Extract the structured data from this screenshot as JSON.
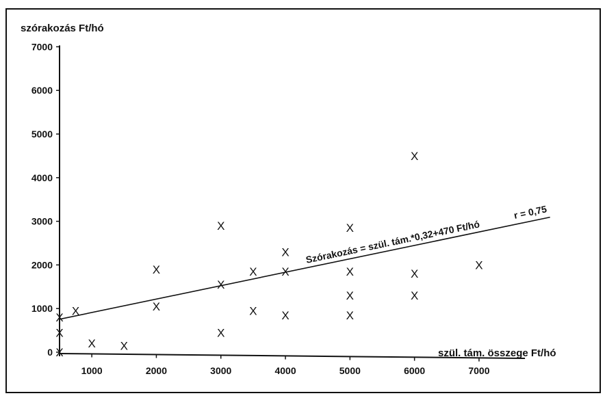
{
  "chart_data": {
    "type": "scatter",
    "ylabel": "szórakozás Ft/hó",
    "xlabel": "szül. tám. összege Ft/hó",
    "xlim": [
      500,
      7500
    ],
    "ylim": [
      0,
      7000
    ],
    "x_ticks": [
      1000,
      2000,
      3000,
      4000,
      5000,
      6000,
      7000
    ],
    "y_ticks": [
      0,
      1000,
      2000,
      3000,
      4000,
      5000,
      6000,
      7000
    ],
    "x_tick_labels": [
      "1000",
      "2000",
      "3000",
      "4000",
      "5000",
      "6000",
      "7000"
    ],
    "y_tick_labels": [
      "0",
      "1000",
      "2000",
      "3000",
      "4000",
      "5000",
      "6000",
      "7000"
    ],
    "marker": "X",
    "points": [
      {
        "x": 500,
        "y": 0
      },
      {
        "x": 500,
        "y": 450
      },
      {
        "x": 500,
        "y": 800
      },
      {
        "x": 750,
        "y": 950
      },
      {
        "x": 1000,
        "y": 200
      },
      {
        "x": 1500,
        "y": 150
      },
      {
        "x": 2000,
        "y": 1050
      },
      {
        "x": 2000,
        "y": 1900
      },
      {
        "x": 3000,
        "y": 450
      },
      {
        "x": 3000,
        "y": 1550
      },
      {
        "x": 3000,
        "y": 2900
      },
      {
        "x": 3500,
        "y": 950
      },
      {
        "x": 3500,
        "y": 1850
      },
      {
        "x": 4000,
        "y": 850
      },
      {
        "x": 4000,
        "y": 1850
      },
      {
        "x": 4000,
        "y": 2300
      },
      {
        "x": 5000,
        "y": 850
      },
      {
        "x": 5000,
        "y": 1300
      },
      {
        "x": 5000,
        "y": 1850
      },
      {
        "x": 5000,
        "y": 2850
      },
      {
        "x": 6000,
        "y": 1300
      },
      {
        "x": 6000,
        "y": 1800
      },
      {
        "x": 6000,
        "y": 4500
      },
      {
        "x": 7000,
        "y": 2000
      }
    ],
    "trend_line": {
      "slope": 0.32,
      "intercept": 470,
      "x_start": 500,
      "x_end": 7000
    },
    "equation_label": "Szórakozás = szül. tám.*0,32+470 Ft/hó",
    "r_label": "r = 0,75",
    "grid": false
  }
}
